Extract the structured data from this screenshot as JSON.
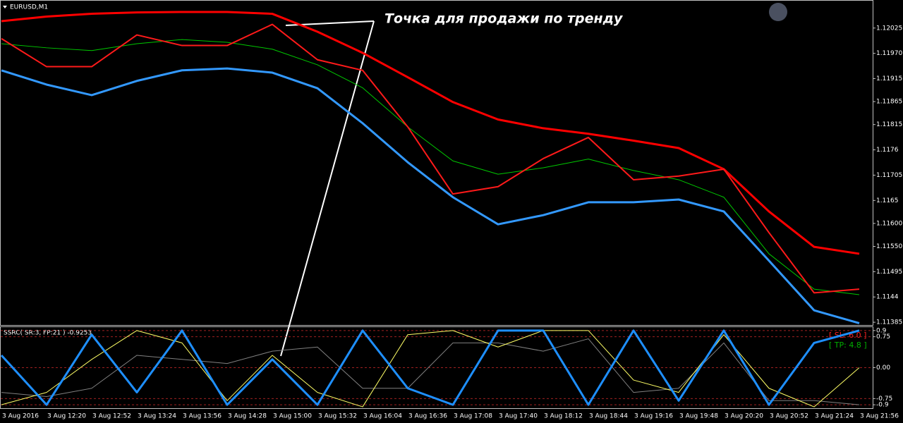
{
  "chart_data": [
    {
      "type": "line",
      "title": "EURUSD,M1",
      "annotation": "Точка для продажи по тренду",
      "grid": false,
      "categories": [
        "3 Aug 2016",
        "3 Aug 12:20",
        "3 Aug 12:52",
        "3 Aug 13:24",
        "3 Aug 13:56",
        "3 Aug 14:28",
        "3 Aug 15:00",
        "3 Aug 15:32",
        "3 Aug 16:04",
        "3 Aug 16:36",
        "3 Aug 17:08",
        "3 Aug 17:40",
        "3 Aug 18:12",
        "3 Aug 18:44",
        "3 Aug 19:16",
        "3 Aug 19:48",
        "3 Aug 20:20",
        "3 Aug 20:52",
        "3 Aug 21:24",
        "3 Aug 21:56"
      ],
      "ylim": [
        1.11379,
        1.12086
      ],
      "yticks": [
        1.12025,
        {
          "value": 1.1197,
          "label": "1.11970"
        },
        1.11915,
        1.11865,
        1.11815,
        1.1176,
        1.11705,
        1.1165,
        {
          "value": 1.116,
          "label": "1.11600"
        },
        {
          "value": 1.1155,
          "label": "1.11550"
        },
        1.11495,
        1.1144,
        1.11385
      ],
      "series": [
        {
          "color": "#ff0000",
          "width": 3,
          "values": [
            1.1204,
            1.1205,
            1.12056,
            1.12059,
            1.1206,
            1.1206,
            1.12056,
            1.12017,
            1.11971,
            1.11918,
            1.11864,
            1.11826,
            1.11807,
            1.11795,
            1.1178,
            1.11764,
            1.11718,
            1.11626,
            1.11549,
            1.11534
          ]
        },
        {
          "color": "#00c800",
          "width": 1,
          "values": [
            1.11991,
            1.11982,
            1.11976,
            1.11991,
            1.12,
            1.11994,
            1.11979,
            1.11945,
            1.11895,
            1.1181,
            1.11736,
            1.11707,
            1.11721,
            1.1174,
            1.11715,
            1.11695,
            1.11657,
            1.11534,
            1.11457,
            1.11445
          ]
        },
        {
          "color": "#3399ff",
          "width": 3,
          "values": [
            1.11933,
            1.11902,
            1.11879,
            1.1191,
            1.11933,
            1.11937,
            1.11928,
            1.11894,
            1.11818,
            1.11733,
            1.11657,
            1.11598,
            1.11618,
            1.11646,
            1.11646,
            1.11652,
            1.11626,
            1.11519,
            1.11411,
            1.11383
          ]
        },
        {
          "color": "#ff1a1a",
          "width": 2,
          "values": [
            1.12002,
            1.11941,
            1.11941,
            1.1201,
            1.11987,
            1.11987,
            1.12033,
            1.11956,
            1.11933,
            1.1181,
            1.11664,
            1.1168,
            1.11741,
            1.11787,
            1.11695,
            1.11703,
            1.11718,
            1.1158,
            1.11449,
            1.11457
          ]
        }
      ]
    },
    {
      "type": "line",
      "title": "SSRC( SR:3, FP:21 ) -0.9253",
      "stop_label": "[ SL: 6.0 ]",
      "take_label": "[ TP: 4.8 ]",
      "grid": true,
      "ylim": [
        -1,
        1
      ],
      "yticks": [
        0.9,
        0.75,
        {
          "value": 0,
          "label": "0.00"
        },
        -0.75,
        -0.9
      ],
      "series": [
        {
          "color": "#808080",
          "width": 1,
          "values": [
            -0.6,
            -0.7,
            -0.5,
            0.3,
            0.2,
            0.1,
            0.4,
            0.5,
            -0.5,
            -0.5,
            0.6,
            0.6,
            0.4,
            0.7,
            -0.6,
            -0.5,
            0.6,
            -0.8,
            -0.8,
            -0.9
          ]
        },
        {
          "color": "#ffff66",
          "width": 1,
          "values": [
            -0.9,
            -0.6,
            0.2,
            0.9,
            0.6,
            -0.8,
            0.3,
            -0.6,
            -0.95,
            0.8,
            0.9,
            0.5,
            0.9,
            0.9,
            -0.3,
            -0.6,
            0.8,
            -0.5,
            -0.95,
            0
          ]
        },
        {
          "color": "#1e8fff",
          "width": 3,
          "values": [
            0.3,
            -0.9,
            0.8,
            -0.6,
            0.9,
            -0.9,
            0.2,
            -0.9,
            0.9,
            -0.5,
            -0.9,
            0.9,
            0.9,
            -0.9,
            0.9,
            -0.8,
            0.9,
            -0.9,
            0.6,
            0.9
          ]
        }
      ]
    }
  ]
}
